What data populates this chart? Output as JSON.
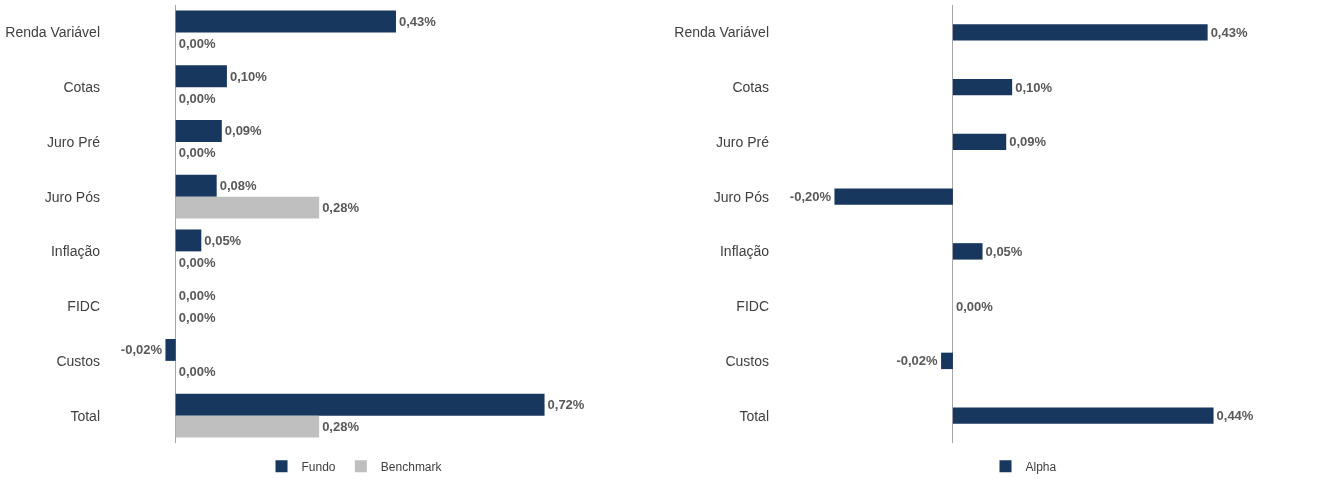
{
  "chart_data": [
    {
      "type": "bar",
      "orientation": "horizontal",
      "categories": [
        "Renda Variável",
        "Cotas",
        "Juro Pré",
        "Juro Pós",
        "Inflação",
        "FIDC",
        "Custos",
        "Total"
      ],
      "series": [
        {
          "name": "Fundo",
          "color": "#17375e",
          "values": [
            0.43,
            0.1,
            0.09,
            0.08,
            0.05,
            0.0,
            -0.02,
            0.72
          ],
          "value_labels": [
            "0,43%",
            "0,10%",
            "0,09%",
            "0,08%",
            "0,05%",
            "0,00%",
            "-0,02%",
            "0,72%"
          ]
        },
        {
          "name": "Benchmark",
          "color": "#bfbfbf",
          "values": [
            0.0,
            0.0,
            0.0,
            0.28,
            0.0,
            0.0,
            0.0,
            0.28
          ],
          "value_labels": [
            "0,00%",
            "0,00%",
            "0,00%",
            "0,28%",
            "0,00%",
            "0,00%",
            "0,00%",
            "0,28%"
          ]
        }
      ],
      "legend": "bottom",
      "grid": false,
      "tick_labels": "y"
    },
    {
      "type": "bar",
      "orientation": "horizontal",
      "categories": [
        "Renda Variável",
        "Cotas",
        "Juro Pré",
        "Juro Pós",
        "Inflação",
        "FIDC",
        "Custos",
        "Total"
      ],
      "series": [
        {
          "name": "Alpha",
          "color": "#17375e",
          "values": [
            0.43,
            0.1,
            0.09,
            -0.2,
            0.05,
            0.0,
            -0.02,
            0.44
          ],
          "value_labels": [
            "0,43%",
            "0,10%",
            "0,09%",
            "-0,20%",
            "0,05%",
            "0,00%",
            "-0,02%",
            "0,44%"
          ]
        }
      ],
      "legend": "bottom",
      "grid": false,
      "tick_labels": "y"
    }
  ]
}
